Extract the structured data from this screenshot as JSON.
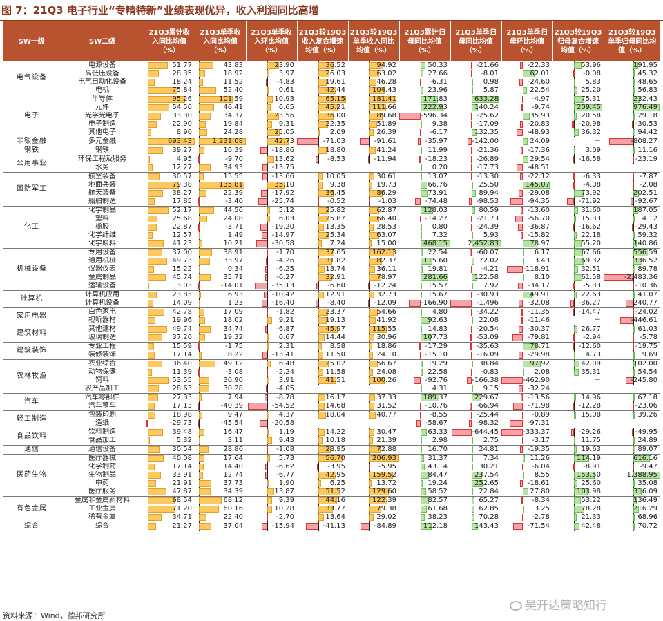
{
  "figure_title": "图 7：21Q3 电子行业“专精特新”业绩表现优异，收入利润同比高增",
  "source_note": "资料来源：Wind，德邦研究所",
  "watermark": "吴开达策略知行",
  "colors": {
    "header_bg": "#B8522F",
    "bar_positive_orange": "#FFC85C",
    "bar_positive_green": "#B9E3A4",
    "bar_negative": "#F4A3A8"
  },
  "headers": [
    "SW一级",
    "SW二级",
    "21Q3累计收入同比均值（%）",
    "21Q3单季收入同比均值（%）",
    "21Q3单季收入环比均值（%）",
    "21Q3较19Q3收入复合增速均值（%）",
    "21Q3较19Q3单季收入同比均值（%）",
    "21Q3累计归母同比均值（%）",
    "21Q3单季归母同比均值（%）",
    "21Q3单季归母环比均值（%）",
    "21Q3较19Q3归母复合增速均值（%）",
    "21Q3较19Q3单季归母同比均值（%）"
  ],
  "groups": [
    {
      "l1": "电气设备",
      "rows": [
        {
          "l2": "电源设备",
          "v": [
            "51.77",
            "43.83",
            "23.90",
            "36.52",
            "94.92",
            "50.33",
            "-21.66",
            "-22.33",
            "53.96",
            "191.95"
          ]
        },
        {
          "l2": "高低压设备",
          "v": [
            "28.35",
            "18.92",
            "3.97",
            "26.03",
            "63.02",
            "27.66",
            "-8.01",
            "62.01",
            "-0.08",
            "45.32"
          ]
        },
        {
          "l2": "电气自动化设备",
          "v": [
            "18.24",
            "11.52",
            "-4.83",
            "19.61",
            "46.28",
            "-6.31",
            "0.98",
            "-24.60",
            "5.83",
            "48.65"
          ]
        },
        {
          "l2": "电机",
          "v": [
            "75.84",
            "52.40",
            "0.61",
            "42.44",
            "104.43",
            "23.96",
            "5.87",
            "22.54",
            "25.20",
            "56.83"
          ]
        }
      ]
    },
    {
      "l1": "电子",
      "rows": [
        {
          "l2": "半导体",
          "v": [
            "95.26",
            "101.59",
            "10.93",
            "65.15",
            "181.41",
            "171.83",
            "633.28",
            "-4.97",
            "75.31",
            "232.43"
          ]
        },
        {
          "l2": "元件",
          "v": [
            "54.50",
            "46.41",
            "6.65",
            "45.21",
            "111.66",
            "222.93",
            "140.24",
            "-9.74",
            "209.45",
            "976.49"
          ]
        },
        {
          "l2": "光学光电子",
          "v": [
            "33.30",
            "34.37",
            "23.56",
            "36.00",
            "89.68",
            "-596.34",
            "-25.62",
            "35.93",
            "20.58",
            "29.18"
          ]
        },
        {
          "l2": "电子制造",
          "v": [
            "22.90",
            "19.84",
            "9.31",
            "22.35",
            "51.89",
            "9.38",
            "-17.09",
            "-20.83",
            "-20.98",
            "-30.53"
          ]
        },
        {
          "l2": "其他电子",
          "v": [
            "8.90",
            "24.28",
            "25.05",
            "2.09",
            "26.39",
            "-6.17",
            "132.35",
            "-48.93",
            "36.32",
            "94.42"
          ]
        }
      ]
    },
    {
      "l1": "非银金融",
      "rows": [
        {
          "l2": "多元金融",
          "v": [
            "693.43",
            "1,231.08",
            "42.73",
            "-71.03",
            "-91.61",
            "-35.97",
            "-142.00",
            "24.09",
            "－",
            "-808.27"
          ]
        }
      ]
    },
    {
      "l1": "钢铁",
      "rows": [
        {
          "l2": "钢铁",
          "v": [
            "39.27",
            "16.39",
            "-18.86",
            "18.80",
            "41.24",
            "11.99",
            "-21.36",
            "-17.36",
            "3.09",
            "11.16"
          ]
        }
      ]
    },
    {
      "l1": "公用事业",
      "rows": [
        {
          "l2": "环保工程及服务",
          "v": [
            "4.95",
            "-9.70",
            "13.62",
            "-8.53",
            "-11.94",
            "-18.23",
            "-26.89",
            "29.54",
            "-16.58",
            "-23.19"
          ]
        },
        {
          "l2": "水务",
          "v": [
            "12.27",
            "34.93",
            "-13.75",
            "",
            "",
            "0.20",
            "-17.73",
            "-48.51",
            "",
            ""
          ]
        }
      ]
    },
    {
      "l1": "国防军工",
      "rows": [
        {
          "l2": "航空装备",
          "v": [
            "30.57",
            "15.55",
            "-13.66",
            "10.05",
            "30.61",
            "13.07",
            "-13.30",
            "-22.12",
            "-6.33",
            "-7.87"
          ]
        },
        {
          "l2": "地面兵装",
          "v": [
            "79.38",
            "135.81",
            "35.10",
            "9.38",
            "19.73",
            "66.76",
            "25.50",
            "145.07",
            "-4.08",
            "-2.08"
          ]
        },
        {
          "l2": "航天装备",
          "v": [
            "38.27",
            "22.39",
            "-17.92",
            "36.45",
            "86.29",
            "73.91",
            "89.94",
            "-29.08",
            "73.92",
            "202.51"
          ]
        },
        {
          "l2": "船舶制造",
          "v": [
            "17.85",
            "-3.40",
            "-25.74",
            "-0.52",
            "-1.03",
            "-74.48",
            "-98.53",
            "-94.35",
            "-71.92",
            "-92.67"
          ]
        }
      ]
    },
    {
      "l1": "化工",
      "rows": [
        {
          "l2": "化学制品",
          "v": [
            "52.17",
            "44.56",
            "5.12",
            "25.82",
            "62.87",
            "128.03",
            "80.59",
            "-13.60",
            "31.60",
            "187.05"
          ]
        },
        {
          "l2": "塑料",
          "v": [
            "25.68",
            "24.08",
            "6.03",
            "25.87",
            "66.40",
            "-14.27",
            "-21.73",
            "-56.70",
            "15.33",
            "4.12"
          ]
        },
        {
          "l2": "橡胶",
          "v": [
            "22.87",
            "-3.71",
            "-19.20",
            "13.35",
            "28.53",
            "0.80",
            "-24.39",
            "-36.87",
            "-16.62",
            "-29.43"
          ]
        },
        {
          "l2": "化学纤维",
          "v": [
            "12.57",
            "1.49",
            "-14.97",
            "25.34",
            "63.07",
            "7.32",
            "5.93",
            "-15.82",
            "22.18",
            "59.32"
          ]
        },
        {
          "l2": "化学原料",
          "v": [
            "41.23",
            "10.21",
            "-30.58",
            "7.24",
            "15.00",
            "468.15",
            "2,452.83",
            "78.97",
            "55.20",
            "140.86"
          ]
        }
      ]
    },
    {
      "l1": "机械设备",
      "rows": [
        {
          "l2": "专用设备",
          "v": [
            "37.00",
            "38.91",
            "-1.70",
            "37.65",
            "162.13",
            "22.54",
            "-60.07",
            "6.17",
            "67.66",
            "556.59"
          ]
        },
        {
          "l2": "通用机械",
          "v": [
            "49.73",
            "33.97",
            "-4.26",
            "31.82",
            "82.37",
            "115.60",
            "72.02",
            "3.43",
            "69.32",
            "336.52"
          ]
        },
        {
          "l2": "仪器仪表",
          "v": [
            "15.22",
            "0.34",
            "-6.25",
            "13.74",
            "36.11",
            "19.81",
            "-4.21",
            "-118.91",
            "32.51",
            "89.78"
          ]
        },
        {
          "l2": "金属制品",
          "v": [
            "45.74",
            "35.71",
            "-6.27",
            "32.91",
            "78.97",
            "281.66",
            "122.58",
            "8.10",
            "61.58",
            "-2,483.36"
          ]
        },
        {
          "l2": "运输设备",
          "v": [
            "3.03",
            "-14.01",
            "-35.13",
            "-6.60",
            "-12.24",
            "15.57",
            "7.92",
            "-34.17",
            "-5.33",
            "-10.36"
          ]
        }
      ]
    },
    {
      "l1": "计算机",
      "rows": [
        {
          "l2": "计算机应用",
          "v": [
            "23.83",
            "6.93",
            "-10.42",
            "12.91",
            "32.73",
            "15.67",
            "-30.93",
            "49.91",
            "22.63",
            "41.07"
          ]
        },
        {
          "l2": "计算机设备",
          "v": [
            "14.09",
            "1.23",
            "-16.40",
            "-8.40",
            "-12.09",
            "-166.90",
            "-1,496",
            "-32.08",
            "-36.27",
            "-240.77"
          ]
        }
      ]
    },
    {
      "l1": "家用电器",
      "rows": [
        {
          "l2": "白色家电",
          "v": [
            "42.78",
            "17.09",
            "-1.82",
            "23.37",
            "54.66",
            "4.80",
            "-34.22",
            "-11.35",
            "-14.47",
            "-24.02"
          ]
        },
        {
          "l2": "视听器材",
          "v": [
            "19.96",
            "18.02",
            "9.21",
            "19.13",
            "41.92",
            "92.63",
            "22.08",
            "-11.46",
            "－",
            "-446.61"
          ]
        }
      ]
    },
    {
      "l1": "建筑材料",
      "rows": [
        {
          "l2": "其他建材",
          "v": [
            "49.74",
            "34.74",
            "-6.87",
            "45.97",
            "115.55",
            "14.83",
            "-20.54",
            "-30.37",
            "26.77",
            "61.03"
          ]
        },
        {
          "l2": "玻璃制造",
          "v": [
            "37.20",
            "19.32",
            "0.67",
            "14.44",
            "30.96",
            "107.73",
            "-53.09",
            "-79.81",
            "-2.94",
            "-5.78"
          ]
        }
      ]
    },
    {
      "l1": "建筑装饰",
      "rows": [
        {
          "l2": "专业工程",
          "v": [
            "15.59",
            "-1.75",
            "2.31",
            "8.58",
            "18.86",
            "-17.29",
            "-35.63",
            "78.71",
            "-12.60",
            "-19.75"
          ]
        },
        {
          "l2": "装修装饰",
          "v": [
            "17.14",
            "8.22",
            "-13.41",
            "11.50",
            "24.10",
            "-15.10",
            "-16.09",
            "-29.98",
            "4.73",
            "9.69"
          ]
        }
      ]
    },
    {
      "l1": "农林牧渔",
      "rows": [
        {
          "l2": "农业综合",
          "v": [
            "36.40",
            "49.12",
            "6.48",
            "25.02",
            "56.67",
            "19.29",
            "38.84",
            "97.92",
            "42.09",
            "102.00"
          ]
        },
        {
          "l2": "动物保健",
          "v": [
            "11.39",
            "-3.08",
            "-2.24",
            "11.58",
            "24.08",
            "22.58",
            "-0.83",
            "2.08",
            "35.31",
            "54.54"
          ]
        },
        {
          "l2": "饲料",
          "v": [
            "53.55",
            "30.90",
            "3.91",
            "41.51",
            "100.26",
            "-92.76",
            "-166.38",
            "-462.90",
            "－",
            "-245.80"
          ]
        },
        {
          "l2": "农产品加工",
          "v": [
            "28.63",
            "30.28",
            "-4.05",
            "",
            "",
            "4.31",
            "9.15",
            "-32.24",
            "",
            ""
          ]
        }
      ]
    },
    {
      "l1": "汽车",
      "rows": [
        {
          "l2": "汽车零部件",
          "v": [
            "27.33",
            "7.94",
            "-8.78",
            "16.17",
            "37.33",
            "189.37",
            "229.67",
            "-13.56",
            "14.96",
            "67.18"
          ]
        },
        {
          "l2": "汽车整车",
          "v": [
            "17.13",
            "-40.39",
            "-54.52",
            "14.68",
            "31.52",
            "-10.76",
            "-66.94",
            "-71.98",
            "-12.28",
            "-23.06"
          ]
        }
      ]
    },
    {
      "l1": "轻工制造",
      "rows": [
        {
          "l2": "包装印刷",
          "v": [
            "18.98",
            "9.47",
            "4.37",
            "18.04",
            "40.77",
            "-8.55",
            "-25.44",
            "-0.89",
            "15.08",
            "39.26"
          ]
        },
        {
          "l2": "造纸",
          "v": [
            "-29.73",
            "-45.54",
            "-20.58",
            "",
            "",
            "-58.67",
            "-98.32",
            "-97.31",
            "",
            ""
          ]
        }
      ]
    },
    {
      "l1": "食品饮料",
      "rows": [
        {
          "l2": "饮料制造",
          "v": [
            "39.48",
            "16.47",
            "1.19",
            "14.22",
            "30.47",
            "63.33",
            "-644.45",
            "-333.37",
            "-29.26",
            "-49.95"
          ]
        },
        {
          "l2": "食品加工",
          "v": [
            "5.32",
            "3.11",
            "9.43",
            "10.18",
            "21.39",
            "2.98",
            "2.75",
            "-3.17",
            "11.75",
            "24.89"
          ]
        }
      ]
    },
    {
      "l1": "通信",
      "rows": [
        {
          "l2": "通信设备",
          "v": [
            "30.54",
            "28.86",
            "-1.08",
            "28.95",
            "72.88",
            "16.70",
            "24.81",
            "-19.35",
            "19.63",
            "89.07"
          ]
        }
      ]
    },
    {
      "l1": "医药生物",
      "rows": [
        {
          "l2": "医疗器械",
          "v": [
            "40.08",
            "17.64",
            "5.73",
            "56.70",
            "206.93",
            "31.37",
            "7.34",
            "11.26",
            "114.19",
            "616.16"
          ]
        },
        {
          "l2": "化学制药",
          "v": [
            "17.14",
            "14.40",
            "-6.62",
            "-3.95",
            "-5.95",
            "43.14",
            "30.21",
            "-6.04",
            "-8.91",
            "-9.47"
          ]
        },
        {
          "l2": "生物制品",
          "v": [
            "33.91",
            "12.74",
            "-6.77",
            "42.95",
            "159.52",
            "84.47",
            "237.54",
            "8.55",
            "153.50",
            "1,388.95"
          ]
        },
        {
          "l2": "中药",
          "v": [
            "21.91",
            "37.73",
            "1.90",
            "6.25",
            "13.72",
            "19.24",
            "252.65",
            "-18.61",
            "25.60",
            "35.08"
          ]
        },
        {
          "l2": "医疗服务",
          "v": [
            "47.87",
            "34.39",
            "13.87",
            "51.52",
            "129.60",
            "58.52",
            "22.84",
            "27.80",
            "103.98",
            "316.09"
          ]
        }
      ]
    },
    {
      "l1": "有色金属",
      "rows": [
        {
          "l2": "金属非金属新材料",
          "v": [
            "68.54",
            "68.12",
            "9.39",
            "44.16",
            "122.39",
            "82.57",
            "65.27",
            "-8.34",
            "53.22",
            "136.49"
          ]
        },
        {
          "l2": "工业金属",
          "v": [
            "71.20",
            "60.16",
            "10.28",
            "33.77",
            "79.38",
            "61.68",
            "62.85",
            "3.25",
            "78.28",
            "216.29"
          ]
        },
        {
          "l2": "稀有金属",
          "v": [
            "34.71",
            "22.40",
            "-2.70",
            "13.64",
            "29.02",
            "38.23",
            "70.28",
            "-2.78",
            "21.33",
            "68.96"
          ]
        }
      ]
    },
    {
      "l1": "综合",
      "rows": [
        {
          "l2": "综合",
          "v": [
            "21.27",
            "37.04",
            "-15.94",
            "-41.13",
            "-84.89",
            "112.18",
            "143.43",
            "-71.54",
            "42.48",
            "70.72"
          ]
        }
      ]
    }
  ]
}
